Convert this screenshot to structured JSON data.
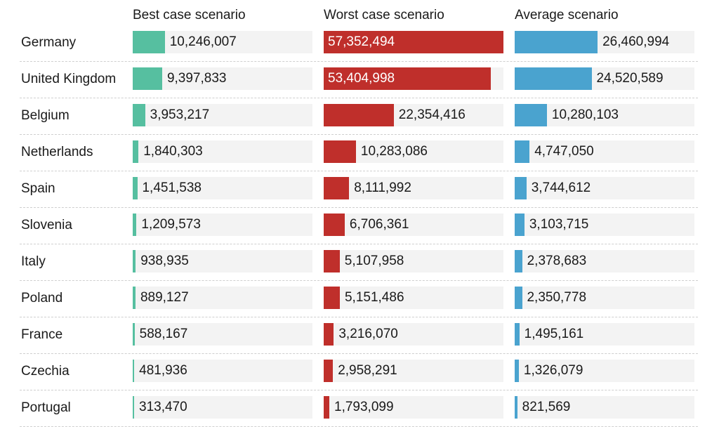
{
  "colors": {
    "best": "#56bfa0",
    "worst": "#bf2f2b",
    "average": "#4aa3cf",
    "track": "#f3f3f3"
  },
  "chart_data": {
    "type": "bar",
    "series": [
      {
        "key": "best",
        "name": "Best case scenario",
        "values": [
          10246007,
          9397833,
          3953217,
          1840303,
          1451538,
          1209573,
          938935,
          889127,
          588167,
          481936,
          313470
        ],
        "labels": [
          "10,246,007",
          "9,397,833",
          "3,953,217",
          "1,840,303",
          "1,451,538",
          "1,209,573",
          "938,935",
          "889,127",
          "588,167",
          "481,936",
          "313,470"
        ]
      },
      {
        "key": "worst",
        "name": "Worst case scenario",
        "values": [
          57352494,
          53404998,
          22354416,
          10283086,
          8111992,
          6706361,
          5107958,
          5151486,
          3216070,
          2958291,
          1793099
        ],
        "labels": [
          "57,352,494",
          "53,404,998",
          "22,354,416",
          "10,283,086",
          "8,111,992",
          "6,706,361",
          "5,107,958",
          "5,151,486",
          "3,216,070",
          "2,958,291",
          "1,793,099"
        ]
      },
      {
        "key": "average",
        "name": "Average scenario",
        "values": [
          26460994,
          24520589,
          10280103,
          4747050,
          3744612,
          3103715,
          2378683,
          2350778,
          1495161,
          1326079,
          821569
        ],
        "labels": [
          "26,460,994",
          "24,520,589",
          "10,280,103",
          "4,747,050",
          "3,744,612",
          "3,103,715",
          "2,378,683",
          "2,350,778",
          "1,495,161",
          "1,326,079",
          "821,569"
        ]
      }
    ],
    "categories": [
      "Germany",
      "United Kingdom",
      "Belgium",
      "Netherlands",
      "Spain",
      "Slovenia",
      "Italy",
      "Poland",
      "France",
      "Czechia",
      "Portugal"
    ],
    "xlim": [
      0,
      57352494
    ],
    "grid": false,
    "legend": "none"
  }
}
